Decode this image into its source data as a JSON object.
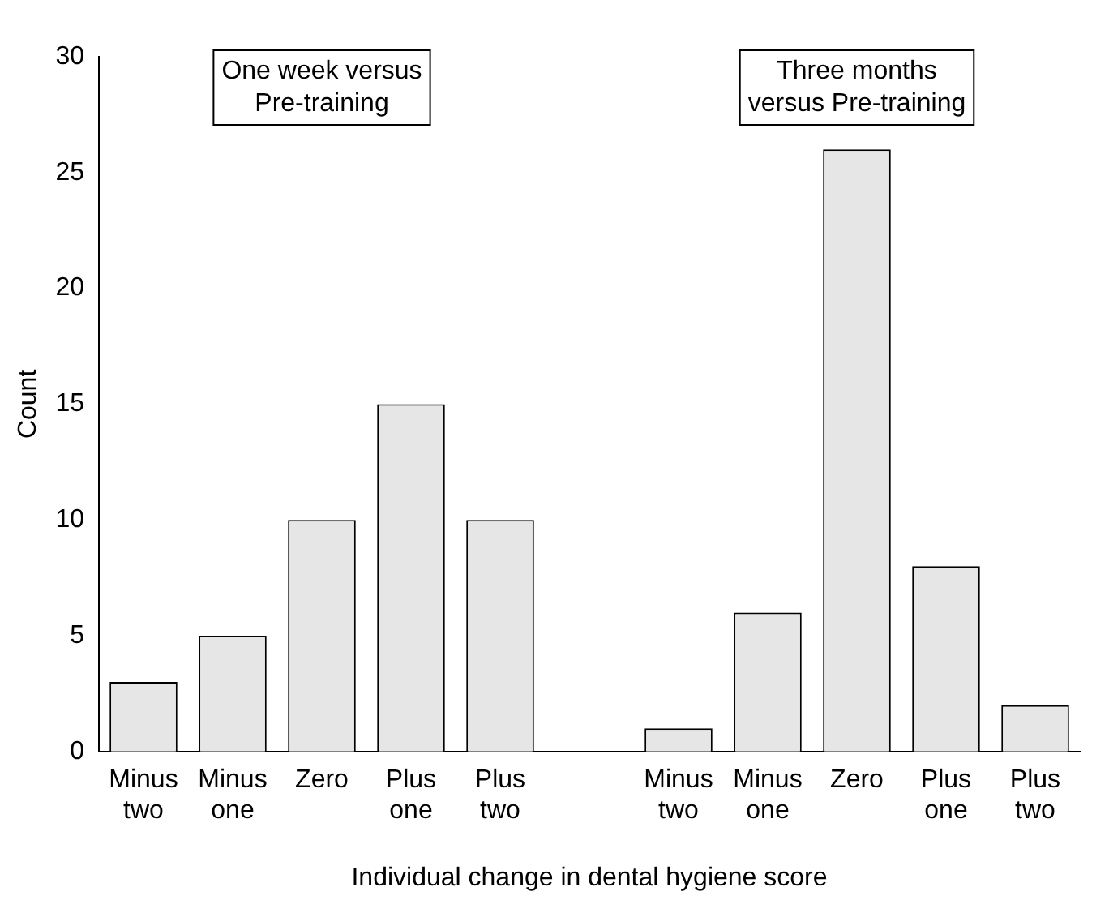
{
  "chart_data": {
    "type": "bar",
    "categories": [
      "Minus two",
      "Minus one",
      "Zero",
      "Plus one",
      "Plus two",
      null,
      "Minus two",
      "Minus one",
      "Zero",
      "Plus one",
      "Plus two"
    ],
    "values": [
      3,
      5,
      10,
      15,
      10,
      null,
      1,
      6,
      26,
      8,
      2
    ],
    "color": "#e6e6e6",
    "ylim": [
      0,
      30
    ],
    "yticks": [
      0,
      5,
      10,
      15,
      20,
      25,
      30
    ],
    "ylabel": "Count",
    "xlabel": "Individual change in dental hygiene score",
    "annotations": [
      "One week versus Pre-training",
      "Three months versus Pre-training"
    ],
    "grid": false,
    "legend": false
  }
}
